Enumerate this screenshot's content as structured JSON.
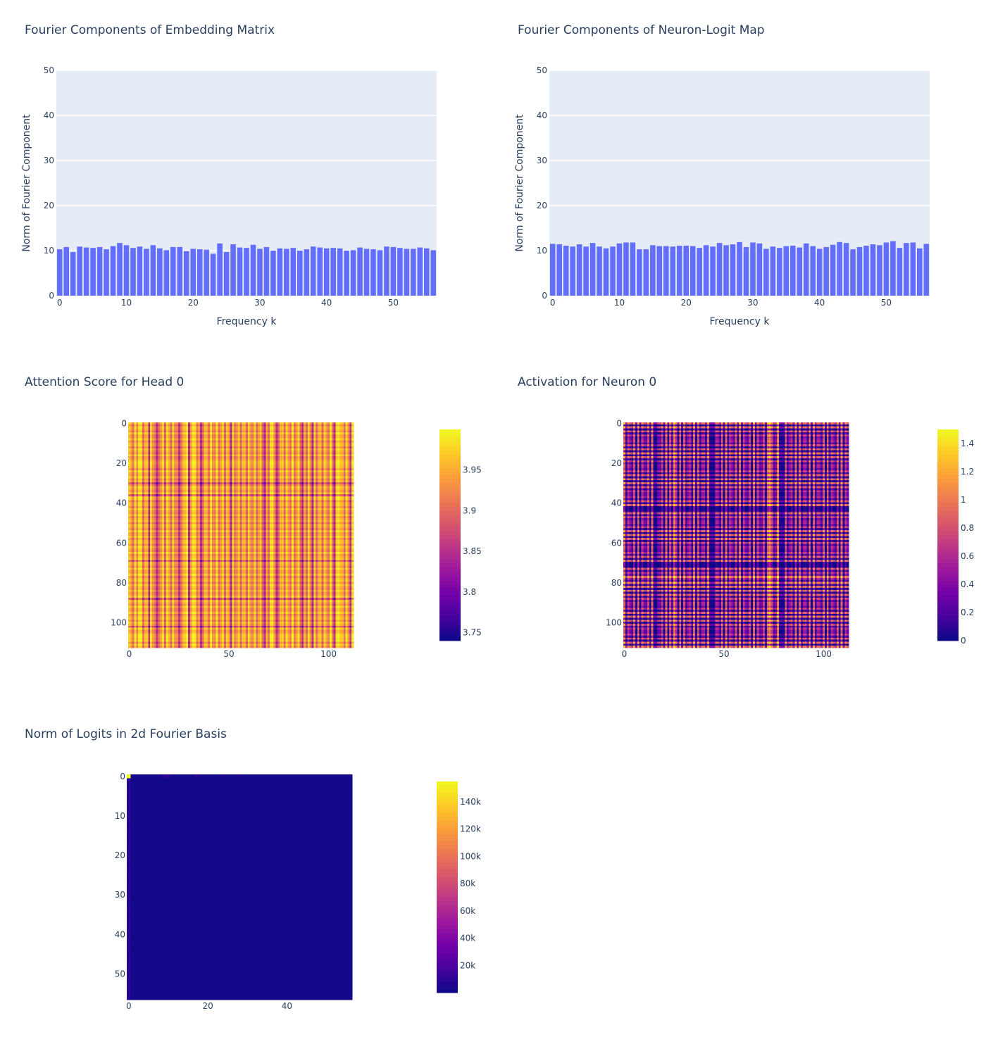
{
  "chart_data": [
    {
      "type": "bar",
      "title": "Fourier Components of Embedding Matrix",
      "xlabel": "Frequency k",
      "ylabel": "Norm of Fourier Component",
      "ylim": [
        0,
        50
      ],
      "xlim": [
        -0.5,
        56.5
      ],
      "xticks": [
        0,
        10,
        20,
        30,
        40,
        50
      ],
      "yticks": [
        0,
        10,
        20,
        30,
        40,
        50
      ],
      "grid": true,
      "color": "#636efa",
      "x": [
        0,
        1,
        2,
        3,
        4,
        5,
        6,
        7,
        8,
        9,
        10,
        11,
        12,
        13,
        14,
        15,
        16,
        17,
        18,
        19,
        20,
        21,
        22,
        23,
        24,
        25,
        26,
        27,
        28,
        29,
        30,
        31,
        32,
        33,
        34,
        35,
        36,
        37,
        38,
        39,
        40,
        41,
        42,
        43,
        44,
        45,
        46,
        47,
        48,
        49,
        50,
        51,
        52,
        53,
        54,
        55,
        56
      ],
      "values": [
        10.3,
        10.8,
        9.7,
        10.9,
        10.7,
        10.6,
        10.8,
        10.3,
        11.0,
        11.7,
        11.2,
        10.6,
        10.9,
        10.4,
        11.2,
        10.5,
        10.1,
        10.8,
        10.8,
        9.9,
        10.4,
        10.3,
        10.2,
        9.3,
        11.6,
        9.7,
        11.4,
        10.7,
        10.6,
        11.3,
        10.4,
        10.8,
        10.0,
        10.5,
        10.4,
        10.6,
        10.0,
        10.3,
        10.9,
        10.7,
        10.5,
        10.6,
        10.5,
        10.0,
        10.1,
        10.7,
        10.4,
        10.3,
        10.1,
        10.9,
        10.8,
        10.6,
        10.4,
        10.4,
        10.7,
        10.5,
        10.1
      ]
    },
    {
      "type": "bar",
      "title": "Fourier Components of Neuron-Logit Map",
      "xlabel": "Frequency k",
      "ylabel": "Norm of Fourier Component",
      "ylim": [
        0,
        50
      ],
      "xlim": [
        -0.5,
        56.5
      ],
      "xticks": [
        0,
        10,
        20,
        30,
        40,
        50
      ],
      "yticks": [
        0,
        10,
        20,
        30,
        40,
        50
      ],
      "grid": true,
      "color": "#636efa",
      "x": [
        0,
        1,
        2,
        3,
        4,
        5,
        6,
        7,
        8,
        9,
        10,
        11,
        12,
        13,
        14,
        15,
        16,
        17,
        18,
        19,
        20,
        21,
        22,
        23,
        24,
        25,
        26,
        27,
        28,
        29,
        30,
        31,
        32,
        33,
        34,
        35,
        36,
        37,
        38,
        39,
        40,
        41,
        42,
        43,
        44,
        45,
        46,
        47,
        48,
        49,
        50,
        51,
        52,
        53,
        54,
        55,
        56
      ],
      "values": [
        11.5,
        11.4,
        11.1,
        10.9,
        11.4,
        10.9,
        11.7,
        10.9,
        10.5,
        10.9,
        11.6,
        11.8,
        11.8,
        10.3,
        10.3,
        11.2,
        11.0,
        11.0,
        10.9,
        11.1,
        11.1,
        11.0,
        10.6,
        11.2,
        10.9,
        11.7,
        11.2,
        11.4,
        11.9,
        10.8,
        11.8,
        11.6,
        10.4,
        10.9,
        10.6,
        11.0,
        11.1,
        10.7,
        11.6,
        11.0,
        10.4,
        10.8,
        11.3,
        11.9,
        11.7,
        10.3,
        10.8,
        11.1,
        11.4,
        11.2,
        11.8,
        12.1,
        10.6,
        11.7,
        11.8,
        10.5,
        11.5
      ]
    },
    {
      "type": "heatmap",
      "title": "Attention Score for Head 0",
      "size": 113,
      "xticks": [
        0,
        50,
        100
      ],
      "yticks": [
        0,
        20,
        40,
        60,
        80,
        100
      ],
      "zrange": [
        3.74,
        4.0
      ],
      "colorbar_ticks": [
        {
          "value": 3.75,
          "label": "3.75"
        },
        {
          "value": 3.8,
          "label": "3.8"
        },
        {
          "value": 3.85,
          "label": "3.85"
        },
        {
          "value": 3.9,
          "label": "3.9"
        },
        {
          "value": 3.95,
          "label": "3.95"
        }
      ],
      "pattern": "separable-sum",
      "dark_columns": [
        10,
        14,
        25,
        30,
        36,
        51,
        68,
        74,
        87,
        92,
        103,
        111
      ],
      "bright_columns": [
        5,
        19,
        29,
        32,
        72,
        101,
        105
      ],
      "dark_rows": [
        30,
        36,
        69,
        88,
        102
      ],
      "bright_rows": [
        20,
        37,
        87,
        107,
        109
      ]
    },
    {
      "type": "heatmap",
      "title": "Activation for Neuron 0",
      "size": 113,
      "xticks": [
        0,
        50,
        100
      ],
      "yticks": [
        0,
        20,
        40,
        60,
        80,
        100
      ],
      "zrange": [
        0,
        1.5
      ],
      "colorbar_ticks": [
        {
          "value": 0,
          "label": "0"
        },
        {
          "value": 0.2,
          "label": "0.2"
        },
        {
          "value": 0.4,
          "label": "0.4"
        },
        {
          "value": 0.6,
          "label": "0.6"
        },
        {
          "value": 0.8,
          "label": "0.8"
        },
        {
          "value": 1.0,
          "label": "1"
        },
        {
          "value": 1.2,
          "label": "1.2"
        },
        {
          "value": 1.4,
          "label": "1.4"
        }
      ],
      "pattern": "relu-sum",
      "dark_columns": [
        15,
        16,
        43,
        44,
        45,
        79,
        80
      ],
      "bright_columns": [
        25,
        73,
        77
      ],
      "dark_rows": [
        42,
        43,
        70,
        71,
        72
      ],
      "bright_rows": [
        77,
        80
      ]
    },
    {
      "type": "heatmap",
      "title": "Norm of Logits in 2d Fourier Basis",
      "size": 57,
      "xticks": [
        0,
        20,
        40
      ],
      "yticks": [
        0,
        10,
        20,
        30,
        40,
        50
      ],
      "zrange": [
        0,
        155000
      ],
      "colorbar_ticks": [
        {
          "value": 20000,
          "label": "20k"
        },
        {
          "value": 40000,
          "label": "40k"
        },
        {
          "value": 60000,
          "label": "60k"
        },
        {
          "value": 80000,
          "label": "80k"
        },
        {
          "value": 100000,
          "label": "100k"
        },
        {
          "value": 120000,
          "label": "120k"
        },
        {
          "value": 140000,
          "label": "140k"
        }
      ],
      "pattern": "sparse",
      "peak": {
        "row": 0,
        "col": 0,
        "value": 155000
      },
      "faint_cells": [
        [
          0,
          9,
          9000
        ],
        [
          0,
          10,
          9000
        ],
        [
          0,
          17,
          7000
        ],
        [
          0,
          24,
          6000
        ],
        [
          0,
          28,
          6000
        ]
      ]
    }
  ]
}
